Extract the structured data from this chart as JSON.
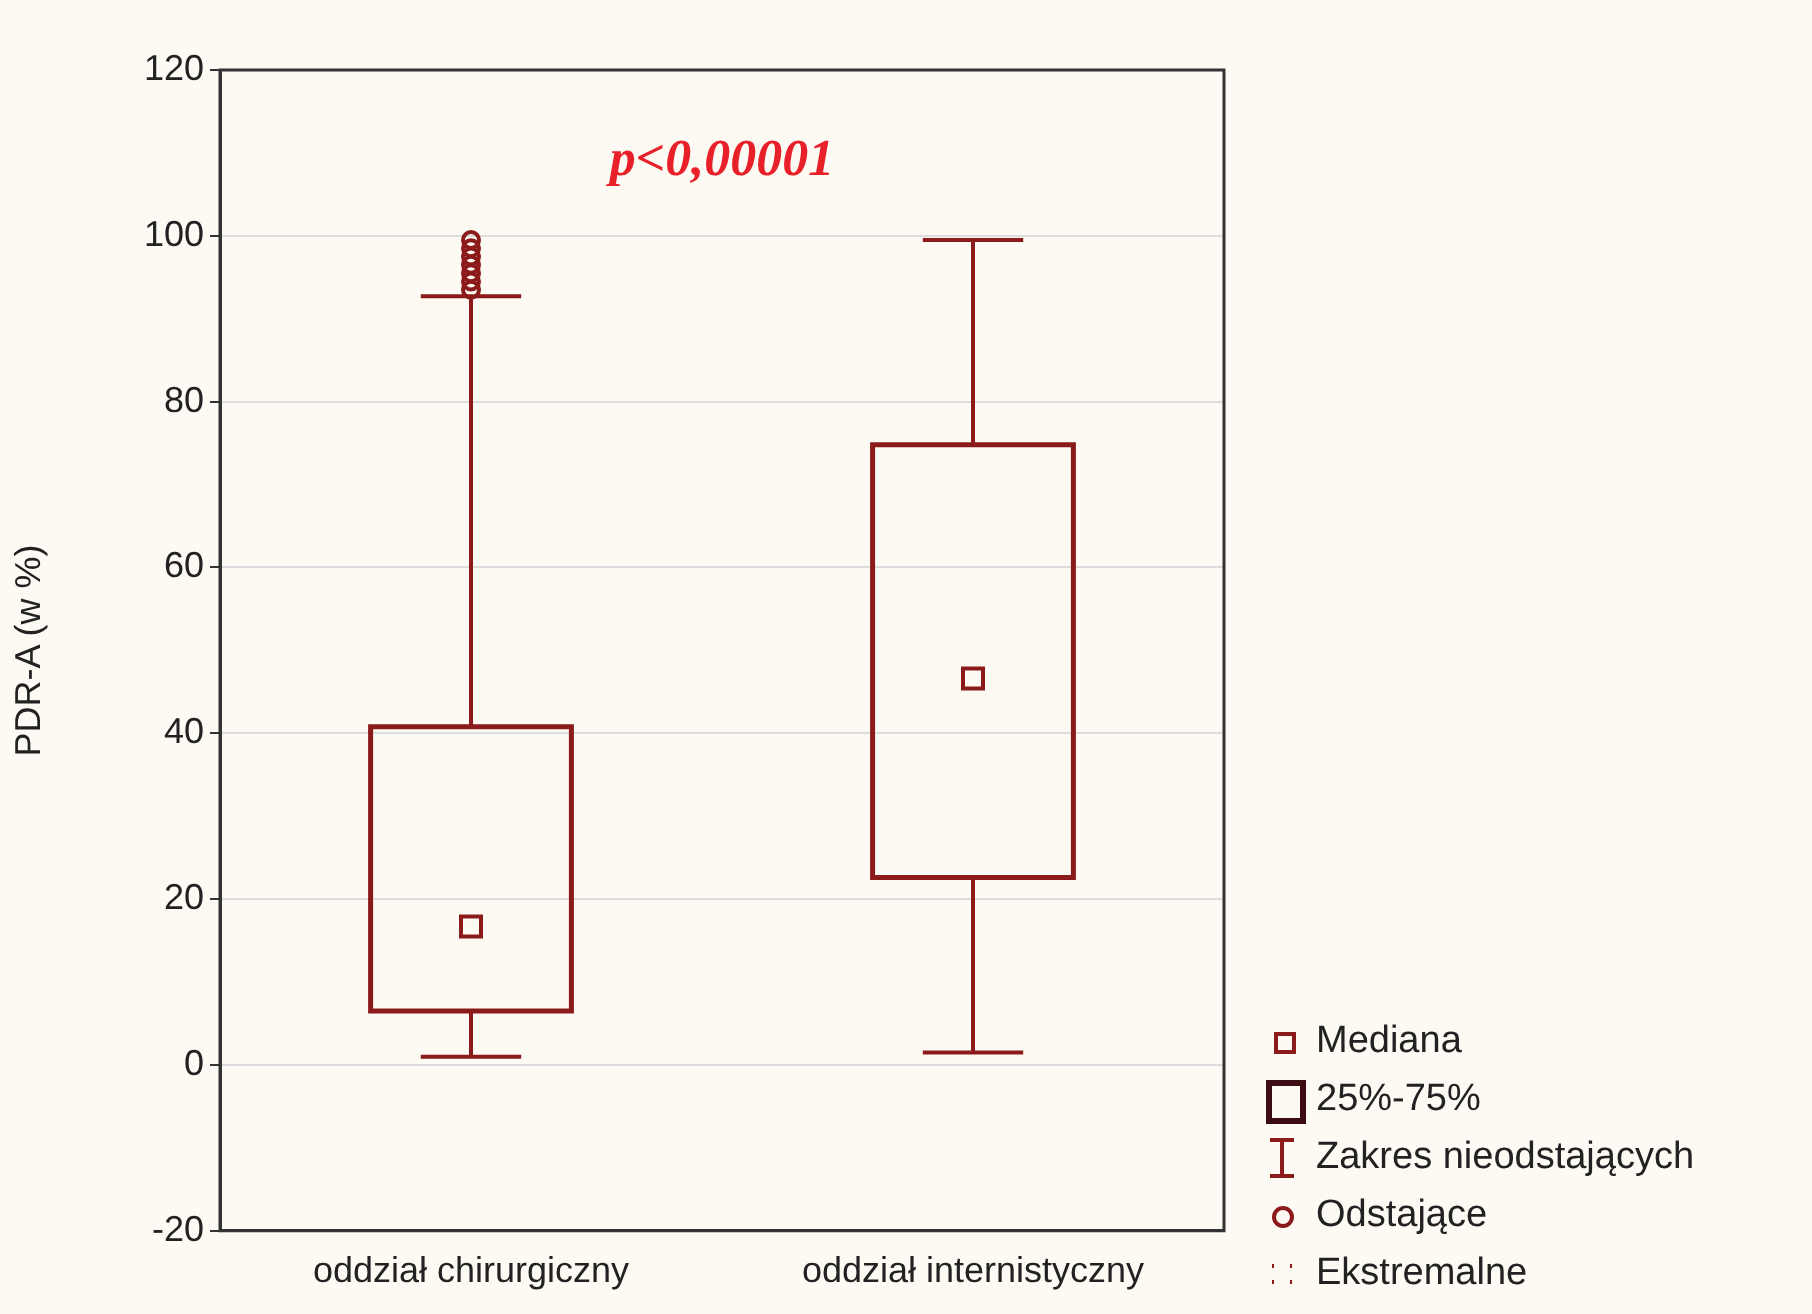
{
  "chart_data": {
    "type": "box",
    "ylabel": "PDR-A (w %)",
    "categories": [
      "oddział chirurgiczny",
      "oddział internistyczny"
    ],
    "series": [
      {
        "color": "#8b1a1a",
        "boxes": [
          {
            "low": 1,
            "q1": 6.5,
            "median": 16.7,
            "q3": 40.8,
            "high": 92.7,
            "outliers": [
              93.5,
              94.5,
              95.5,
              96.5,
              97.5,
              98.5,
              99.5
            ]
          },
          {
            "low": 1.5,
            "q1": 22.6,
            "median": 46.6,
            "q3": 74.8,
            "high": 99.5
          }
        ]
      }
    ],
    "ylim": [
      -20,
      120
    ],
    "yticks": [
      -20,
      0,
      20,
      40,
      60,
      80,
      100,
      120
    ],
    "grid": "y",
    "annotations": [
      "p<0,00001",
      "Mediana",
      "25%-75%",
      "Zakres nieodstających",
      "Odstające",
      "Ekstremalne"
    ]
  }
}
